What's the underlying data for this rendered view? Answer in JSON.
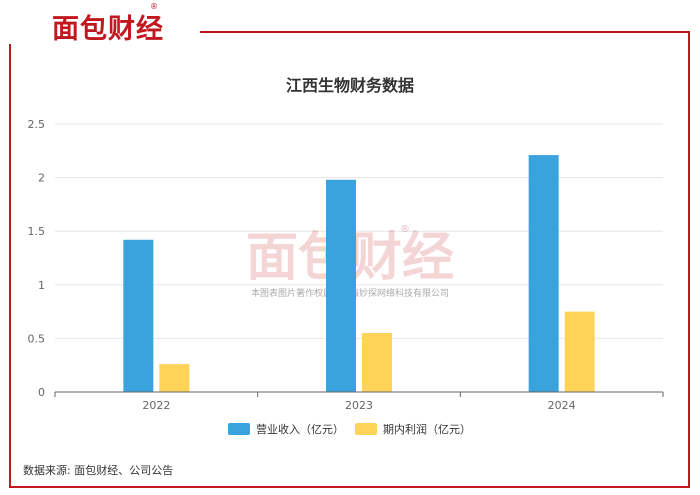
{
  "brand": {
    "logo_text": "面包财经",
    "registered_mark": "®",
    "watermark_text": "面包财经",
    "watermark_caption": "本图表图片著作权属于上海妙探网络科技有限公司"
  },
  "colors": {
    "brand_red": "#c0181e",
    "revenue": "#3aa3de",
    "profit": "#ffd357",
    "grid": "#e6e6e6",
    "axis": "#666666"
  },
  "chart_data": {
    "type": "bar",
    "title": "江西生物财务数据",
    "categories": [
      "2022",
      "2023",
      "2024"
    ],
    "series": [
      {
        "name": "营业收入（亿元）",
        "values": [
          1.42,
          1.98,
          2.21
        ]
      },
      {
        "name": "期内利润（亿元）",
        "values": [
          0.26,
          0.55,
          0.75
        ]
      }
    ],
    "ylim": [
      0,
      2.5
    ],
    "yticks": [
      "0",
      "0.5",
      "1",
      "1.5",
      "2",
      "2.5"
    ],
    "grid": true,
    "legend": "bottom"
  },
  "footer": {
    "source": "数据来源: 面包财经、公司公告"
  }
}
